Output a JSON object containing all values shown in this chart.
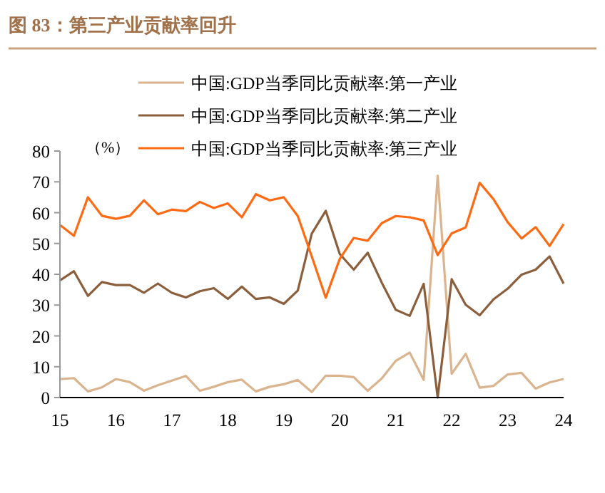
{
  "chart_data": {
    "type": "line",
    "title": "图 83：第三产业贡献率回升",
    "ylabel": "（%）",
    "x": [
      15,
      15.25,
      15.5,
      15.75,
      16,
      16.25,
      16.5,
      16.75,
      17,
      17.25,
      17.5,
      17.75,
      18,
      18.25,
      18.5,
      18.75,
      19,
      19.25,
      19.5,
      19.75,
      20,
      20.25,
      20.5,
      20.75,
      21,
      21.25,
      21.5,
      21.75,
      22,
      22.25,
      22.5,
      22.75,
      23,
      23.25,
      23.5,
      23.75,
      24
    ],
    "series": [
      {
        "name": "中国:GDP当季同比贡献率:第一产业",
        "color": "#d9b48f",
        "values": [
          6,
          6.3,
          2,
          3.3,
          6,
          5,
          2.2,
          4,
          5.5,
          7,
          2.2,
          3.5,
          5,
          5.8,
          2,
          3.5,
          4.3,
          5.7,
          1.8,
          7.1,
          7.1,
          6.6,
          2.2,
          6.2,
          11.9,
          14.6,
          5.7,
          72,
          7.7,
          14.2,
          3.2,
          3.8,
          7.5,
          8,
          2.9,
          4.9,
          6
        ]
      },
      {
        "name": "中国:GDP当季同比贡献率:第二产业",
        "color": "#8b5e3c",
        "values": [
          38,
          41,
          33,
          37.5,
          36.5,
          36.5,
          34,
          37,
          34,
          32.5,
          34.5,
          35.5,
          32,
          36,
          32,
          32.5,
          30.4,
          34.7,
          53.2,
          60.6,
          46.6,
          41.5,
          47,
          37.3,
          28.5,
          26.5,
          36.9,
          0,
          38.4,
          30.1,
          26.7,
          31.9,
          35.3,
          39.9,
          41.5,
          45.8,
          37
        ]
      },
      {
        "name": "中国:GDP当季同比贡献率:第三产业",
        "color": "#ff6a13",
        "values": [
          56,
          52.5,
          65,
          59,
          58,
          59,
          64,
          59.5,
          61,
          60.5,
          63.5,
          61.5,
          63,
          58.5,
          66,
          64,
          65,
          58.9,
          45.8,
          32.4,
          45,
          51.8,
          50.9,
          56.6,
          58.9,
          58.5,
          57.5,
          46.2,
          53.3,
          55.2,
          69.7,
          64.3,
          56.9,
          51.6,
          55.3,
          49.2,
          56.3
        ]
      }
    ],
    "xlim": [
      15,
      24
    ],
    "xticks": [
      15,
      16,
      17,
      18,
      19,
      20,
      21,
      22,
      23,
      24
    ],
    "ylim": [
      0,
      80
    ],
    "yticks": [
      0,
      10,
      20,
      30,
      40,
      50,
      60,
      70,
      80
    ],
    "legend": "top",
    "grid": false,
    "marker": "none",
    "line_style": "solid"
  }
}
